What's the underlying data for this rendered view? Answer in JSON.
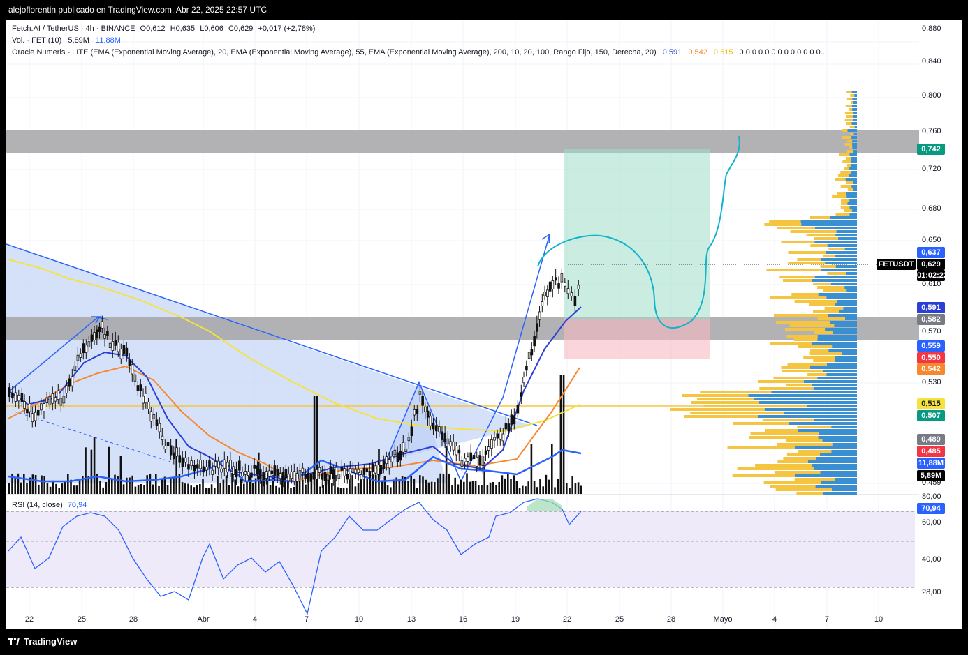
{
  "header": {
    "publisher": "alejoflorentin publicado en TradingView.com, Abr 22, 2025 22:57 UTC"
  },
  "legend": {
    "symbol_line": "Fetch.AI / TetherUS · 4h · BINANCE",
    "ohlc": {
      "o": "O0,612",
      "h": "H0,635",
      "l": "L0,606",
      "c": "C0,629",
      "chg": "+0,017 (+2,78%)"
    },
    "vol_label": "Vol. · FET (10)",
    "vol_value": "5,89M",
    "vol_ma": "11,88M",
    "indicator_line": "Oracle Numeris - LITE (EMA (Exponential Moving Average), 20, EMA (Exponential Moving Average), 55, EMA (Exponential Moving Average), 200, 10, 20, 100, Rango Fijo, 150, Derecha, 20)",
    "ema_vals": [
      "0,591",
      "0,542",
      "0,515"
    ],
    "ema_trail": "0  0  0  0  0  0  0  0  0  0  0  0  0..."
  },
  "rsi_legend": {
    "label": "RSI (14, close)",
    "value": "70,94"
  },
  "price_axis": [
    "0,880",
    "0,840",
    "0,800",
    "0,760",
    "0,720",
    "0,680",
    "0,650",
    "0,610",
    "0,570",
    "0,530",
    "0,459"
  ],
  "rsi_axis": [
    "80,00",
    "60,00",
    "40,00",
    "28,00"
  ],
  "time_axis": [
    "22",
    "25",
    "28",
    "Abr",
    "4",
    "7",
    "10",
    "13",
    "16",
    "19",
    "22",
    "25",
    "28",
    "Mayo",
    "4",
    "7",
    "10"
  ],
  "price_tags": [
    {
      "value": "0,742",
      "color": "#089981"
    },
    {
      "value": "0,637",
      "color": "#2962ff"
    },
    {
      "value": "FETUSDT",
      "color": "#000000"
    },
    {
      "value": "0,629",
      "color": "#000000"
    },
    {
      "value": "01:02:22",
      "color": "#000000"
    },
    {
      "value": "0,591",
      "color": "#2b3fd6"
    },
    {
      "value": "0,582",
      "color": "#787b86"
    },
    {
      "value": "0,559",
      "color": "#2962ff"
    },
    {
      "value": "0,550",
      "color": "#f23645"
    },
    {
      "value": "0,542",
      "color": "#f7882f"
    },
    {
      "value": "0,515",
      "color": "#f5e33b"
    },
    {
      "value": "0,507",
      "color": "#089981"
    },
    {
      "value": "0,489",
      "color": "#787b86"
    },
    {
      "value": "0,485",
      "color": "#f23645"
    },
    {
      "value": "11,88M",
      "color": "#2962ff"
    },
    {
      "value": "5,89M",
      "color": "#000000"
    },
    {
      "value": "70,94",
      "color": "#2962ff"
    }
  ],
  "footer": {
    "brand": "TradingView"
  },
  "chart_data": {
    "type": "candlestick",
    "symbol": "FETUSDT",
    "interval": "4h",
    "last_price": 0.629,
    "x_dates": [
      "Mar 22",
      "Mar 25",
      "Mar 28",
      "Abr 1",
      "Abr 4",
      "Abr 7",
      "Abr 10",
      "Abr 13",
      "Abr 16",
      "Abr 19",
      "Abr 22"
    ],
    "close_approx": [
      0.525,
      0.575,
      0.545,
      0.48,
      0.472,
      0.465,
      0.478,
      0.515,
      0.49,
      0.505,
      0.629
    ],
    "ema20_last": 0.591,
    "ema55_last": 0.542,
    "ema200_last": 0.515,
    "zones": [
      {
        "type": "resistance",
        "from": 0.742,
        "to": 0.765
      },
      {
        "type": "support",
        "from": 0.56,
        "to": 0.583
      }
    ],
    "long_position": {
      "entry": 0.582,
      "target": 0.742,
      "stop": 0.55
    },
    "rsi": {
      "period": 14,
      "last": 70.94,
      "levels": [
        70,
        50,
        30
      ],
      "ylim": [
        20,
        85
      ]
    },
    "volume": {
      "last": "5,89M",
      "ma": "11,88M"
    },
    "ylim": [
      0.45,
      0.89
    ]
  }
}
